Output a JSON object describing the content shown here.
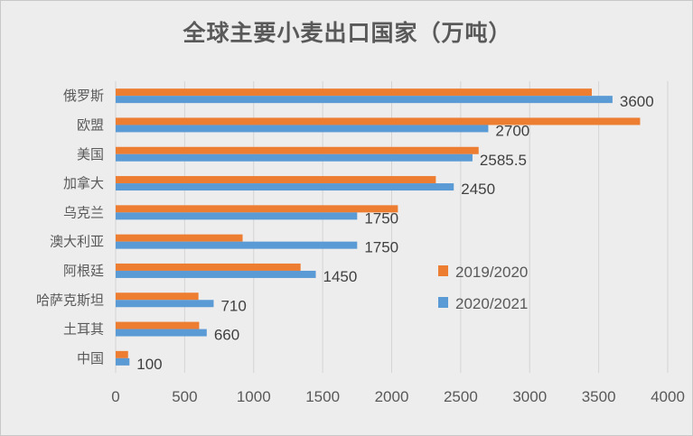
{
  "chart_data": {
    "type": "bar",
    "orientation": "horizontal",
    "title": "全球主要小麦出口国家（万吨）",
    "categories": [
      "俄罗斯",
      "欧盟",
      "美国",
      "加拿大",
      "乌克兰",
      "澳大利亚",
      "阿根廷",
      "哈萨克斯坦",
      "土耳其",
      "中国"
    ],
    "series": [
      {
        "name": "2019/2020",
        "color": "#ed7d31",
        "values": [
          3450,
          3800,
          2630,
          2320,
          2045,
          920,
          1340,
          600,
          605,
          90
        ]
      },
      {
        "name": "2020/2021",
        "color": "#5b9bd5",
        "values": [
          3600,
          2700,
          2585.5,
          2450,
          1750,
          1750,
          1450,
          710,
          660,
          100
        ],
        "data_labels": [
          "3600",
          "2700",
          "2585.5",
          "2450",
          "1750",
          "1750",
          "1450",
          "710",
          "660",
          "100"
        ]
      }
    ],
    "xlim": [
      0,
      4000
    ],
    "x_ticks": [
      "0",
      "500",
      "1000",
      "1500",
      "2000",
      "2500",
      "3000",
      "3500",
      "4000"
    ],
    "grid": "vertical",
    "legend": "right-middle"
  }
}
